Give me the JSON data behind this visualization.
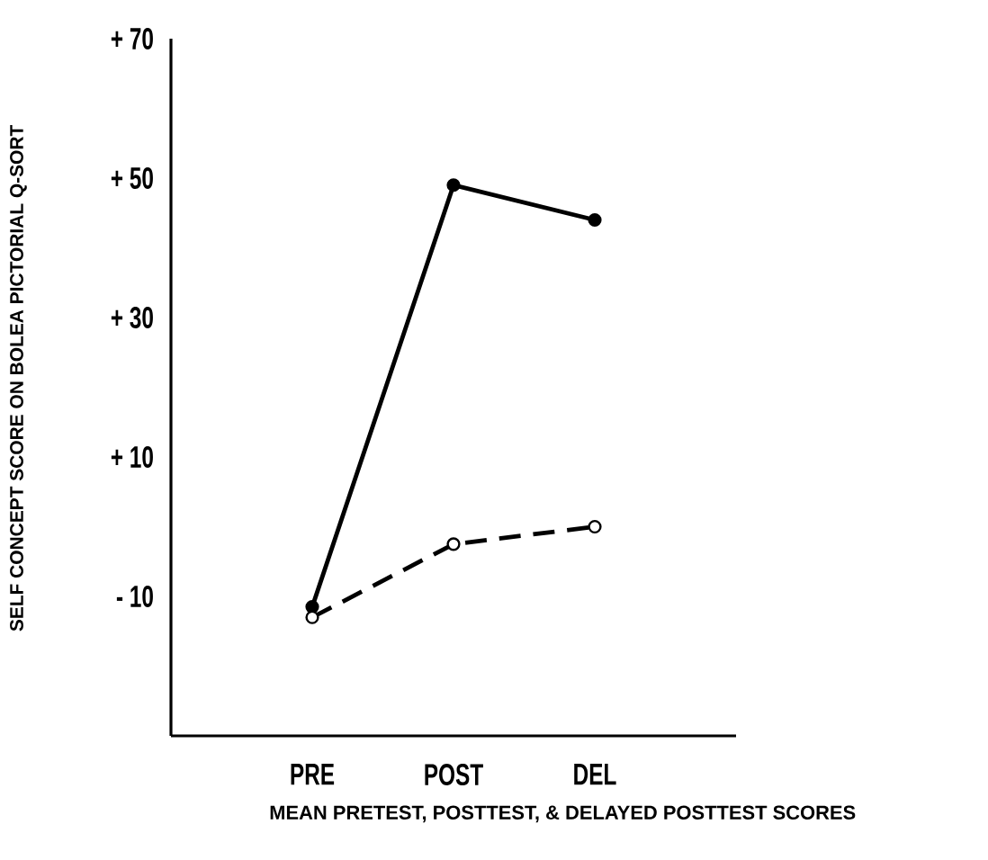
{
  "chart_data": {
    "type": "line",
    "xlabel": "MEAN  PRETEST, POSTTEST, & DELAYED  POSTTEST SCORES",
    "ylabel": "SELF  CONCEPT  SCORE  ON  BOLEA  PICTORIAL  Q-SORT",
    "categories": [
      "PRE",
      "POST",
      "DEL"
    ],
    "series": [
      {
        "color": "#000000",
        "values": [
          -11.5,
          49,
          44
        ],
        "line_style": "solid",
        "marker": "circle"
      },
      {
        "color": "#000000",
        "values": [
          -13,
          -2.5,
          0
        ],
        "line_style": "dashed",
        "marker": "circle"
      }
    ],
    "ylim": [
      -30,
      70
    ],
    "yticks": [
      {
        "value": 70,
        "label": "+ 70"
      },
      {
        "value": 50,
        "label": "+ 50"
      },
      {
        "value": 30,
        "label": "+ 30"
      },
      {
        "value": 10,
        "label": "+ 10"
      },
      {
        "value": -10,
        "label": "- 10"
      }
    ],
    "grid": false
  }
}
